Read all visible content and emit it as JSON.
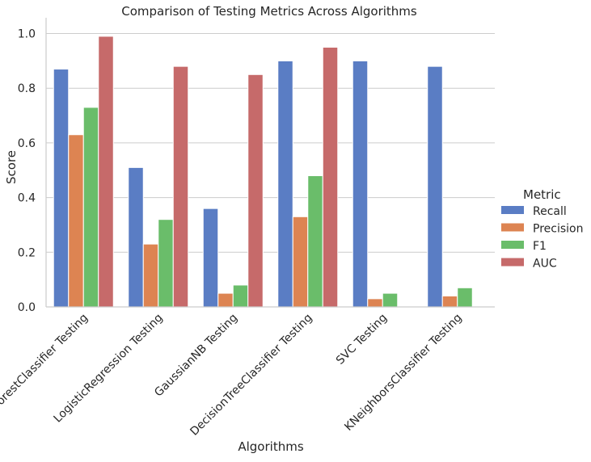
{
  "chart_data": {
    "type": "bar",
    "title": "Comparison of Testing Metrics Across Algorithms",
    "xlabel": "Algorithms",
    "ylabel": "Score",
    "ylim": [
      0,
      1.04
    ],
    "yticks": [
      0.0,
      0.2,
      0.4,
      0.6,
      0.8,
      1.0
    ],
    "ytick_labels": [
      "0.0",
      "0.2",
      "0.4",
      "0.6",
      "0.8",
      "1.0"
    ],
    "grid": "horizontal",
    "legend_position": "right",
    "legend_title": "Metric",
    "categories": [
      "RandomForestClassifier Testing",
      "LogisticRegression Testing",
      "GaussianNB Testing",
      "DecisionTreeClassifier Testing",
      "SVC Testing",
      "KNeighborsClassifier Testing"
    ],
    "series": [
      {
        "name": "Recall",
        "color": "#5A7DC4",
        "values": [
          0.87,
          0.51,
          0.36,
          0.9,
          0.9,
          0.88
        ]
      },
      {
        "name": "Precision",
        "color": "#DD8452",
        "values": [
          0.63,
          0.23,
          0.05,
          0.33,
          0.03,
          0.04
        ]
      },
      {
        "name": "F1",
        "color": "#6ABD6A",
        "values": [
          0.73,
          0.32,
          0.08,
          0.48,
          0.05,
          0.07
        ]
      },
      {
        "name": "AUC",
        "color": "#C66A6A",
        "values": [
          0.99,
          0.88,
          0.85,
          0.95,
          0.0,
          0.0
        ]
      }
    ]
  }
}
